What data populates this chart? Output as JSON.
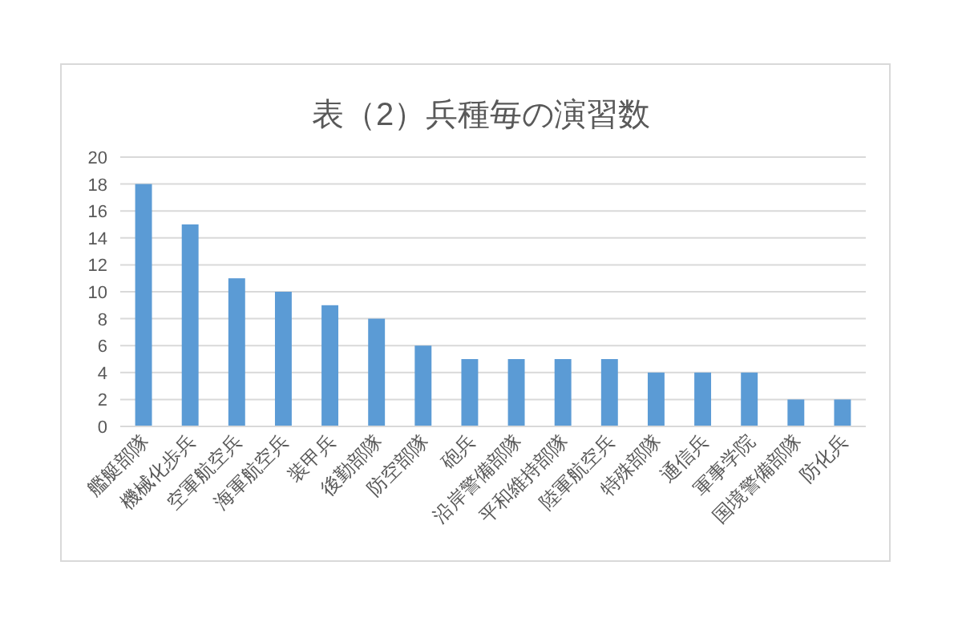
{
  "chart_data": {
    "type": "bar",
    "title": "表（2）兵種毎の演習数",
    "categories": [
      "艦艇部隊",
      "機械化歩兵",
      "空軍航空兵",
      "海軍航空兵",
      "装甲兵",
      "後勤部隊",
      "防空部隊",
      "砲兵",
      "沿岸警備部隊",
      "平和維持部隊",
      "陸軍航空兵",
      "特殊部隊",
      "通信兵",
      "軍事学院",
      "国境警備部隊",
      "防化兵"
    ],
    "values": [
      18,
      15,
      11,
      10,
      9,
      8,
      6,
      5,
      5,
      5,
      5,
      4,
      4,
      4,
      2,
      2
    ],
    "color": "#5b9bd5",
    "ylim": [
      0,
      20
    ],
    "yticks": [
      0,
      2,
      4,
      6,
      8,
      10,
      12,
      14,
      16,
      18,
      20
    ],
    "grid": "y"
  }
}
